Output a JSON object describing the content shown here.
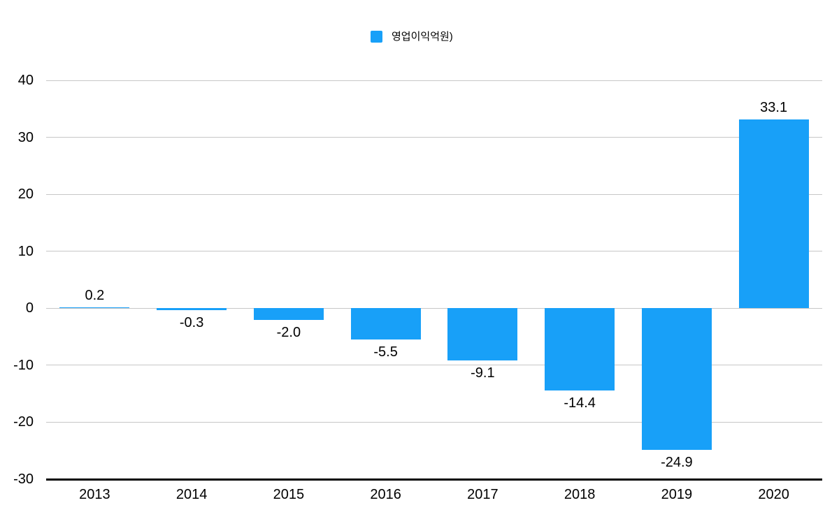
{
  "chart_data": {
    "type": "bar",
    "title": "",
    "legend_position": "top",
    "grid": true,
    "legend": [
      {
        "label": "영업이익억원)",
        "color": "#18a0f8"
      }
    ],
    "categories": [
      "2013",
      "2014",
      "2015",
      "2016",
      "2017",
      "2018",
      "2019",
      "2020"
    ],
    "series": [
      {
        "name": "영업이익억원)",
        "values": [
          0.2,
          -0.3,
          -2.0,
          -5.5,
          -9.1,
          -14.4,
          -24.9,
          33.1
        ]
      }
    ],
    "value_labels": [
      "0.2",
      "-0.3",
      "-2.0",
      "-5.5",
      "-9.1",
      "-14.4",
      "-24.9",
      "33.1"
    ],
    "xlabel": "",
    "ylabel": "",
    "y_ticks": [
      40,
      30,
      20,
      10,
      0,
      -10,
      -20,
      -30
    ],
    "ylim": [
      -30,
      40
    ],
    "colors": {
      "bar": "#18a0f8",
      "grid": "#c7c7c7",
      "axis": "#000000",
      "text": "#000000",
      "background": "#ffffff"
    }
  }
}
